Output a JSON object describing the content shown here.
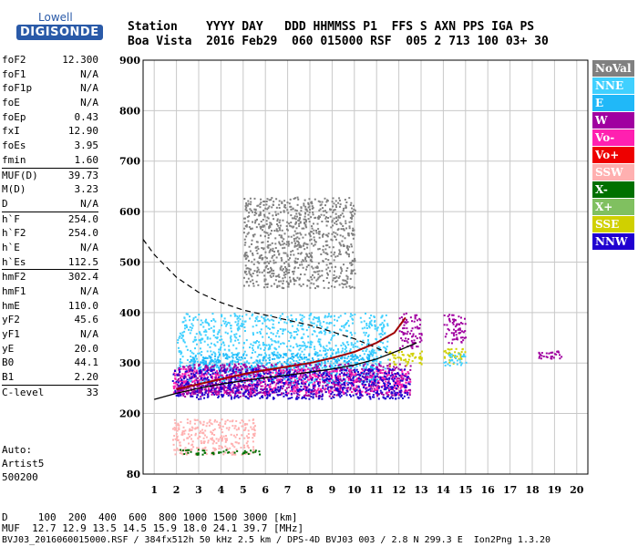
{
  "logo": {
    "line1": "Lowell",
    "line2": "DIGISONDE"
  },
  "header": {
    "row1": "Station    YYYY DAY   DDD HHMMSS P1  FFS S AXN PPS IGA PS",
    "row2": "Boa Vista  2016 Feb29  060 015000 RSF  005 2 713 100 03+ 30"
  },
  "params": [
    {
      "name": "foF2",
      "value": "12.300",
      "sep": false
    },
    {
      "name": "foF1",
      "value": "N/A",
      "sep": false
    },
    {
      "name": "foF1p",
      "value": "N/A",
      "sep": false
    },
    {
      "name": "foE",
      "value": "N/A",
      "sep": false
    },
    {
      "name": "foEp",
      "value": "0.43",
      "sep": false
    },
    {
      "name": "fxI",
      "value": "12.90",
      "sep": false
    },
    {
      "name": "foEs",
      "value": "3.95",
      "sep": false
    },
    {
      "name": "fmin",
      "value": "1.60",
      "sep": false
    },
    {
      "name": "MUF(D)",
      "value": "39.73",
      "sep": true
    },
    {
      "name": "M(D)",
      "value": "3.23",
      "sep": false
    },
    {
      "name": "D",
      "value": "N/A",
      "sep": false
    },
    {
      "name": "h`F",
      "value": "254.0",
      "sep": true
    },
    {
      "name": "h`F2",
      "value": "254.0",
      "sep": false
    },
    {
      "name": "h`E",
      "value": "N/A",
      "sep": false
    },
    {
      "name": "h`Es",
      "value": "112.5",
      "sep": false
    },
    {
      "name": "hmF2",
      "value": "302.4",
      "sep": true
    },
    {
      "name": "hmF1",
      "value": "N/A",
      "sep": false
    },
    {
      "name": "hmE",
      "value": "110.0",
      "sep": false
    },
    {
      "name": "yF2",
      "value": "45.6",
      "sep": false
    },
    {
      "name": "yF1",
      "value": "N/A",
      "sep": false
    },
    {
      "name": "yE",
      "value": "20.0",
      "sep": false
    },
    {
      "name": "B0",
      "value": "44.1",
      "sep": false
    },
    {
      "name": "B1",
      "value": "2.20",
      "sep": false
    },
    {
      "name": "C-level",
      "value": "33",
      "sep": true
    }
  ],
  "auto": {
    "line1": "Auto:",
    "line2": "Artist5",
    "line3": "500200"
  },
  "bottom": {
    "d_row": "D     100  200  400  600  800 1000 1500 3000 [km]",
    "muf_row": "MUF  12.7 12.9 13.5 14.5 15.9 18.0 24.1 39.7 [MHz]",
    "file_row": "BVJ03_2016060015000.RSF / 384fx512h 50 kHz 2.5 km / DPS-4D BVJ03 003 / 2.8 N 299.3 E  Ion2Png 1.3.20"
  },
  "legend": [
    {
      "label": "NoVal",
      "color": "#808080"
    },
    {
      "label": "NNE",
      "color": "#40d0ff"
    },
    {
      "label": "E",
      "color": "#20b8f8"
    },
    {
      "label": "W",
      "color": "#a000a0"
    },
    {
      "label": "Vo-",
      "color": "#ff20b0"
    },
    {
      "label": "Vo+",
      "color": "#ee0000"
    },
    {
      "label": "SSW",
      "color": "#ffb0b0"
    },
    {
      "label": "X-",
      "color": "#007000"
    },
    {
      "label": "X+",
      "color": "#80c060"
    },
    {
      "label": "SSE",
      "color": "#d0d000"
    },
    {
      "label": "NNW",
      "color": "#2000d0"
    }
  ],
  "chart_data": {
    "type": "scatter",
    "x_ticks": [
      1,
      2,
      3,
      4,
      5,
      6,
      7,
      8,
      9,
      10,
      11,
      12,
      13,
      14,
      15,
      16,
      17,
      18,
      19,
      20
    ],
    "y_ticks": [
      80,
      200,
      300,
      400,
      500,
      600,
      700,
      800,
      900
    ],
    "xlim": [
      0.5,
      20.5
    ],
    "ylim": [
      80,
      900
    ],
    "grid": true,
    "traces": {
      "o_trace": [
        [
          2,
          248
        ],
        [
          3,
          258
        ],
        [
          4,
          268
        ],
        [
          5,
          278
        ],
        [
          6,
          286
        ],
        [
          7,
          293
        ],
        [
          8,
          300
        ],
        [
          9,
          310
        ],
        [
          10,
          322
        ],
        [
          11,
          340
        ],
        [
          11.8,
          360
        ],
        [
          12.3,
          390
        ]
      ],
      "x_trace": [
        [
          1,
          228
        ],
        [
          2,
          240
        ],
        [
          3,
          250
        ],
        [
          4,
          258
        ],
        [
          5,
          265
        ],
        [
          6,
          271
        ],
        [
          7,
          276
        ],
        [
          8,
          282
        ],
        [
          9,
          288
        ],
        [
          10,
          296
        ],
        [
          11,
          308
        ],
        [
          12,
          325
        ],
        [
          12.8,
          340
        ]
      ],
      "model_dashed": [
        [
          0.5,
          545
        ],
        [
          1,
          515
        ],
        [
          2,
          470
        ],
        [
          3,
          440
        ],
        [
          4,
          420
        ],
        [
          5,
          405
        ],
        [
          6,
          395
        ],
        [
          7,
          385
        ],
        [
          8,
          375
        ],
        [
          9,
          362
        ],
        [
          10,
          348
        ],
        [
          11,
          330
        ],
        [
          11.5,
          320
        ]
      ]
    },
    "clusters": [
      {
        "legend": "NNE",
        "x": [
          2,
          11.5
        ],
        "y": [
          290,
          400
        ]
      },
      {
        "legend": "E",
        "x": [
          2.5,
          11
        ],
        "y": [
          260,
          320
        ]
      },
      {
        "legend": "W",
        "x": [
          2,
          12.5
        ],
        "y": [
          235,
          300
        ]
      },
      {
        "legend": "Vo-",
        "x": [
          1.8,
          12.5
        ],
        "y": [
          240,
          290
        ]
      },
      {
        "legend": "NNW",
        "x": [
          1.8,
          12.5
        ],
        "y": [
          230,
          290
        ]
      },
      {
        "legend": "W",
        "x": [
          12,
          13
        ],
        "y": [
          330,
          400
        ]
      },
      {
        "legend": "W",
        "x": [
          14,
          15
        ],
        "y": [
          340,
          400
        ]
      },
      {
        "legend": "SSE",
        "x": [
          11.5,
          13
        ],
        "y": [
          295,
          325
        ]
      },
      {
        "legend": "SSE",
        "x": [
          14,
          15
        ],
        "y": [
          300,
          330
        ]
      },
      {
        "legend": "NNE",
        "x": [
          14,
          15
        ],
        "y": [
          295,
          320
        ]
      },
      {
        "legend": "W",
        "x": [
          18,
          19.3
        ],
        "y": [
          310,
          325
        ]
      },
      {
        "legend": "SSW",
        "x": [
          1.8,
          5.5
        ],
        "y": [
          120,
          190
        ]
      },
      {
        "legend": "X-",
        "x": [
          2,
          5.8
        ],
        "y": [
          120,
          130
        ]
      },
      {
        "legend": "W",
        "x": [
          2,
          6
        ],
        "y": [
          240,
          260
        ]
      },
      {
        "legend": "NoVal",
        "x": [
          5,
          10
        ],
        "y": [
          450,
          630
        ]
      }
    ]
  }
}
